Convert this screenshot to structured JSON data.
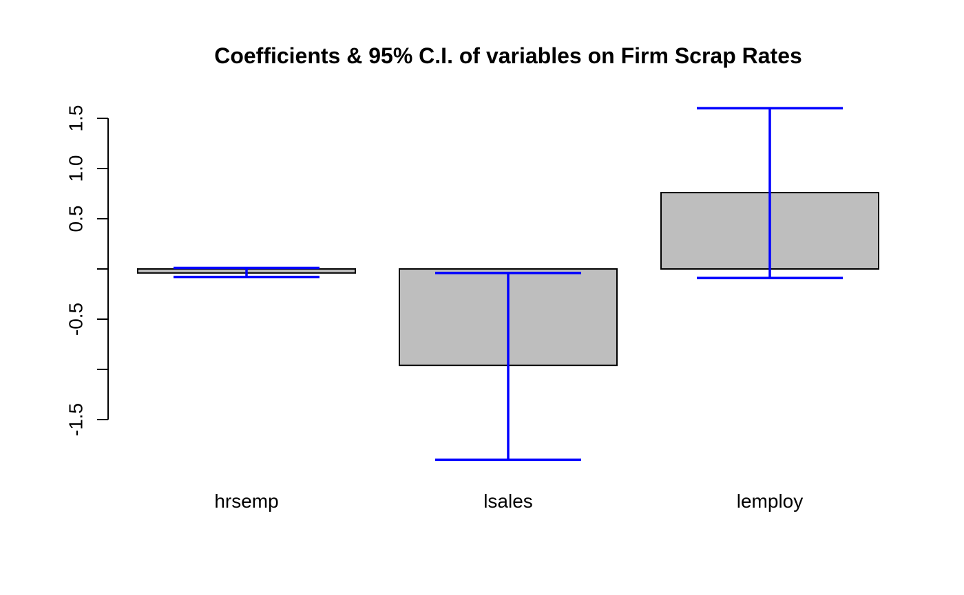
{
  "chart_data": {
    "type": "bar",
    "title": "Coefficients & 95% C.I. of variables on Firm Scrap Rates",
    "xlabel": "",
    "ylabel": "",
    "categories": [
      "hrsemp",
      "lsales",
      "lemploy"
    ],
    "values": [
      -0.04,
      -0.96,
      0.76
    ],
    "ci_lower": [
      -0.08,
      -1.9,
      -0.09
    ],
    "ci_upper": [
      0.01,
      -0.04,
      1.6
    ],
    "y_ticks": [
      -1.5,
      -1.0,
      -0.5,
      0.0,
      0.5,
      1.0,
      1.5
    ],
    "y_tick_labels": [
      "-1.5",
      "",
      "-0.5",
      "",
      "0.5",
      "1.0",
      "1.5"
    ],
    "ylim": [
      -2.0,
      1.7
    ],
    "grid": false,
    "colors": {
      "bar_fill": "#bebebe",
      "bar_border": "#000000",
      "ci": "#0000ff"
    }
  }
}
